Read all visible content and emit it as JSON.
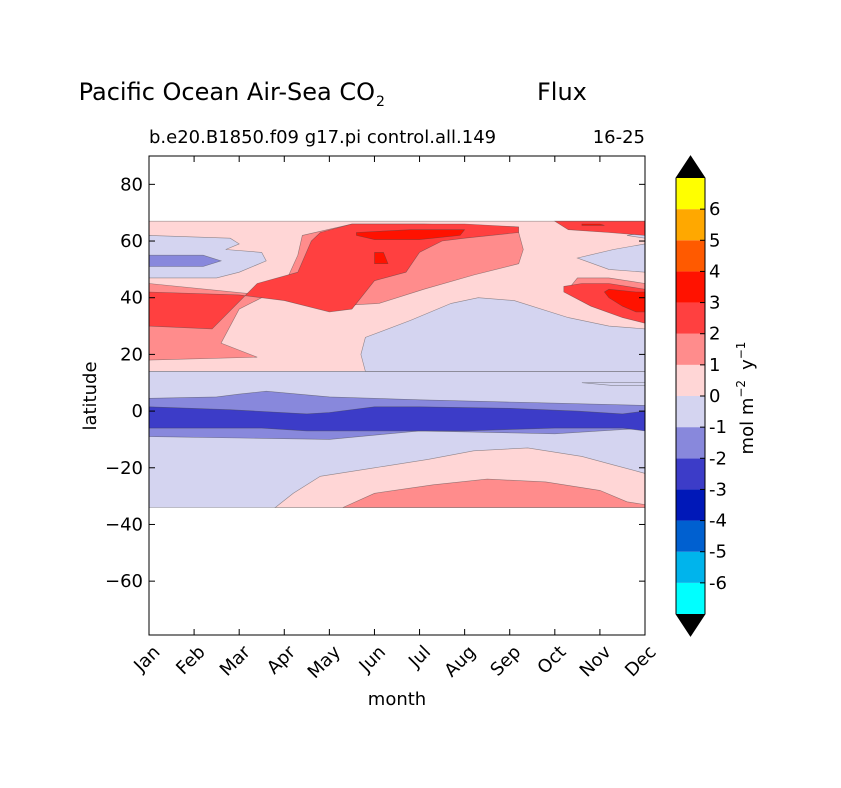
{
  "chart_data": {
    "type": "heatmap",
    "title": "Pacific Ocean Air-Sea CO",
    "title_subscript": "2",
    "title_suffix": "Flux",
    "subtitle_left": "b.e20.B1850.f09 g17.pi control.all.149",
    "subtitle_right": "16-25",
    "xlabel": "month",
    "ylabel": "latitude",
    "x_ticks": [
      "Jan",
      "Feb",
      "Mar",
      "Apr",
      "May",
      "Jun",
      "Jul",
      "Aug",
      "Sep",
      "Oct",
      "Nov",
      "Dec"
    ],
    "xlim": [
      0,
      11
    ],
    "y_ticks": [
      80,
      60,
      40,
      20,
      0,
      -20,
      -40,
      -60
    ],
    "ylim": [
      -79,
      90
    ],
    "data_lat_range": [
      -34,
      67
    ],
    "colorbar": {
      "label_main": "mol m",
      "label_exp1": "−2",
      "label_mid": "y",
      "label_exp2": "−1",
      "ticks": [
        "6",
        "5",
        "4",
        "3",
        "2",
        "1",
        "0",
        "-1",
        "-2",
        "-3",
        "-4",
        "-5",
        "-6"
      ],
      "levels": [
        {
          "range": [
            -7,
            -6
          ],
          "color": "#00ffff"
        },
        {
          "range": [
            -6,
            -5
          ],
          "color": "#00b4ec"
        },
        {
          "range": [
            -5,
            -4
          ],
          "color": "#0060d0"
        },
        {
          "range": [
            -4,
            -3
          ],
          "color": "#0018b8"
        },
        {
          "range": [
            -3,
            -2
          ],
          "color": "#3c3cc8"
        },
        {
          "range": [
            -2,
            -1
          ],
          "color": "#8888dc"
        },
        {
          "range": [
            -1,
            0
          ],
          "color": "#d4d4f0"
        },
        {
          "range": [
            0,
            1
          ],
          "color": "#ffd6d6"
        },
        {
          "range": [
            1,
            2
          ],
          "color": "#ff8c8c"
        },
        {
          "range": [
            2,
            3
          ],
          "color": "#ff4040"
        },
        {
          "range": [
            3,
            4
          ],
          "color": "#ff1200"
        },
        {
          "range": [
            4,
            5
          ],
          "color": "#ff5a00"
        },
        {
          "range": [
            5,
            6
          ],
          "color": "#ffa800"
        },
        {
          "range": [
            6,
            7
          ],
          "color": "#ffff00"
        }
      ],
      "extend_color": "#000000"
    },
    "regions": [
      {
        "level": "0 to 1",
        "color": "#ffd6d6",
        "points": [
          [
            0,
            14
          ],
          [
            11,
            14
          ],
          [
            11,
            67
          ],
          [
            0,
            67
          ]
        ]
      },
      {
        "level": "-1 to 0",
        "color": "#d4d4f0",
        "points": [
          [
            0,
            -34
          ],
          [
            11,
            -34
          ],
          [
            11,
            14
          ],
          [
            0,
            14
          ]
        ]
      },
      {
        "level": "0 to 1",
        "color": "#ffd6d6",
        "points": [
          [
            2.8,
            -34
          ],
          [
            3.2,
            -29
          ],
          [
            3.8,
            -23
          ],
          [
            5,
            -20
          ],
          [
            6.2,
            -17
          ],
          [
            7.2,
            -14
          ],
          [
            8.4,
            -13
          ],
          [
            9.6,
            -16
          ],
          [
            10.3,
            -19
          ],
          [
            11,
            -22
          ],
          [
            11,
            -34
          ]
        ]
      },
      {
        "level": "1 to 2",
        "color": "#ff8c8c",
        "points": [
          [
            4.3,
            -34
          ],
          [
            5,
            -29
          ],
          [
            6.3,
            -26
          ],
          [
            7.5,
            -24
          ],
          [
            8.8,
            -25
          ],
          [
            10,
            -28
          ],
          [
            10.6,
            -32
          ],
          [
            11,
            -33
          ],
          [
            11,
            -34
          ]
        ]
      },
      {
        "level": "-1 to 0",
        "color": "#d4d4f0",
        "points": [
          [
            4.8,
            26
          ],
          [
            5.8,
            32
          ],
          [
            6.7,
            38
          ],
          [
            7.3,
            40
          ],
          [
            8.1,
            39
          ],
          [
            9.3,
            33
          ],
          [
            10.2,
            30
          ],
          [
            11,
            29
          ],
          [
            11,
            14
          ],
          [
            4.8,
            14
          ],
          [
            4.7,
            20
          ]
        ]
      },
      {
        "level": "-1 to 0",
        "color": "#d4d4f0",
        "points": [
          [
            0,
            62
          ],
          [
            1.8,
            61
          ],
          [
            2,
            59
          ],
          [
            1.7,
            57
          ],
          [
            2.5,
            56
          ],
          [
            2.6,
            53
          ],
          [
            2,
            49
          ],
          [
            1.5,
            47
          ],
          [
            0,
            47
          ]
        ]
      },
      {
        "level": "-1 to 0",
        "color": "#d4d4f0",
        "points": [
          [
            11,
            63
          ],
          [
            10.6,
            62
          ],
          [
            11,
            61
          ]
        ]
      },
      {
        "level": "-1 to 0",
        "color": "#d4d4f0",
        "points": [
          [
            11,
            59
          ],
          [
            10.3,
            57
          ],
          [
            9.5,
            54
          ],
          [
            10.2,
            50
          ],
          [
            11,
            49
          ]
        ]
      },
      {
        "level": "-2 to -1",
        "color": "#8888dc",
        "points": [
          [
            0,
            55
          ],
          [
            1.2,
            55
          ],
          [
            1.6,
            53
          ],
          [
            1.2,
            51
          ],
          [
            0,
            51
          ]
        ]
      },
      {
        "level": "-1 to 0",
        "color": "#d4d4f0",
        "points": [
          [
            9.6,
            10
          ],
          [
            10.3,
            9
          ],
          [
            11,
            9
          ],
          [
            11,
            10
          ]
        ]
      },
      {
        "level": "1 to 2",
        "color": "#ff8c8c",
        "points": [
          [
            0,
            45
          ],
          [
            2.5,
            41
          ],
          [
            4,
            37
          ],
          [
            5.1,
            38
          ],
          [
            6.1,
            43
          ],
          [
            7.2,
            48
          ],
          [
            8.2,
            52
          ],
          [
            8.3,
            57
          ],
          [
            8.2,
            63
          ],
          [
            8.1,
            65
          ],
          [
            6.1,
            66
          ],
          [
            4.5,
            66
          ],
          [
            3.4,
            62
          ],
          [
            3.3,
            55
          ],
          [
            3.1,
            48
          ],
          [
            3.5,
            44
          ],
          [
            2.5,
            40
          ],
          [
            2,
            36
          ],
          [
            1.6,
            24
          ],
          [
            2.4,
            19
          ],
          [
            0,
            18
          ]
        ]
      },
      {
        "level": "1 to 2",
        "color": "#ff8c8c",
        "points": [
          [
            9.3,
            43
          ],
          [
            10,
            42
          ],
          [
            11,
            40
          ],
          [
            11,
            45
          ],
          [
            10.2,
            47
          ],
          [
            9.5,
            47
          ]
        ]
      },
      {
        "level": "2 to 3",
        "color": "#ff4040",
        "points": [
          [
            0,
            42
          ],
          [
            2,
            41
          ],
          [
            3,
            39
          ],
          [
            4,
            35
          ],
          [
            4.5,
            36
          ],
          [
            5,
            46
          ],
          [
            5.7,
            49
          ],
          [
            6,
            56
          ],
          [
            6.5,
            60
          ],
          [
            7,
            61
          ],
          [
            8.2,
            63
          ],
          [
            8.2,
            65
          ],
          [
            7,
            66
          ],
          [
            4.5,
            66
          ],
          [
            3.8,
            63
          ],
          [
            3.6,
            60
          ],
          [
            3.3,
            49
          ],
          [
            2.4,
            45
          ],
          [
            1.4,
            29
          ],
          [
            0,
            30
          ]
        ]
      },
      {
        "level": "2 to 3",
        "color": "#ff4040",
        "points": [
          [
            9.6,
            45
          ],
          [
            10.2,
            45
          ],
          [
            11,
            43
          ],
          [
            11,
            31
          ],
          [
            10.5,
            33
          ],
          [
            9.8,
            37
          ],
          [
            9.2,
            42
          ],
          [
            9.2,
            44
          ]
        ]
      },
      {
        "level": "2 to 3",
        "color": "#ff4040",
        "points": [
          [
            9,
            67
          ],
          [
            11,
            67
          ],
          [
            11,
            62
          ],
          [
            10.2,
            63
          ],
          [
            9.3,
            64
          ]
        ]
      },
      {
        "level": "3 to 4",
        "color": "#ff1200",
        "points": [
          [
            4.6,
            63
          ],
          [
            5.8,
            64
          ],
          [
            7,
            64
          ],
          [
            6.9,
            62
          ],
          [
            6,
            60.5
          ],
          [
            5,
            60.5
          ],
          [
            4.6,
            62
          ]
        ]
      },
      {
        "level": "3 to 4",
        "color": "#ff1200",
        "points": [
          [
            5,
            56
          ],
          [
            5.2,
            56
          ],
          [
            5.3,
            52
          ],
          [
            5,
            52
          ]
        ]
      },
      {
        "level": "3 to 4",
        "color": "#ff1200",
        "points": [
          [
            10.2,
            43
          ],
          [
            10.8,
            42
          ],
          [
            11,
            42
          ],
          [
            11,
            35
          ],
          [
            10.8,
            35
          ],
          [
            10.5,
            37
          ],
          [
            10.2,
            40
          ],
          [
            10.1,
            42
          ]
        ]
      },
      {
        "level": "3 to 4",
        "color": "#ff1200",
        "points": [
          [
            9.6,
            66
          ],
          [
            10,
            66
          ],
          [
            10.1,
            65.5
          ],
          [
            9.6,
            65.5
          ]
        ]
      },
      {
        "level": "-2 to -1",
        "color": "#8888dc",
        "points": [
          [
            0,
            4.5
          ],
          [
            1.5,
            5
          ],
          [
            2,
            6
          ],
          [
            2.6,
            7
          ],
          [
            4,
            5
          ],
          [
            6,
            4
          ],
          [
            8.5,
            3
          ],
          [
            11,
            2
          ],
          [
            11,
            -6
          ],
          [
            9,
            -8
          ],
          [
            6,
            -7
          ],
          [
            4,
            -10
          ],
          [
            2,
            -9.5
          ],
          [
            0,
            -9
          ]
        ]
      },
      {
        "level": "-3 to -2",
        "color": "#3c3cc8",
        "points": [
          [
            0,
            1.5
          ],
          [
            1.8,
            0.5
          ],
          [
            3.5,
            -1
          ],
          [
            4,
            -0.5
          ],
          [
            5,
            1.5
          ],
          [
            6,
            1.5
          ],
          [
            8,
            1
          ],
          [
            9.5,
            0
          ],
          [
            10.5,
            -1
          ],
          [
            11,
            0
          ],
          [
            11,
            -7
          ],
          [
            10.5,
            -6
          ],
          [
            9,
            -6
          ],
          [
            7,
            -7
          ],
          [
            5,
            -7
          ],
          [
            3.5,
            -7
          ],
          [
            2.5,
            -6
          ],
          [
            1,
            -6
          ],
          [
            0,
            -6
          ]
        ]
      }
    ]
  }
}
